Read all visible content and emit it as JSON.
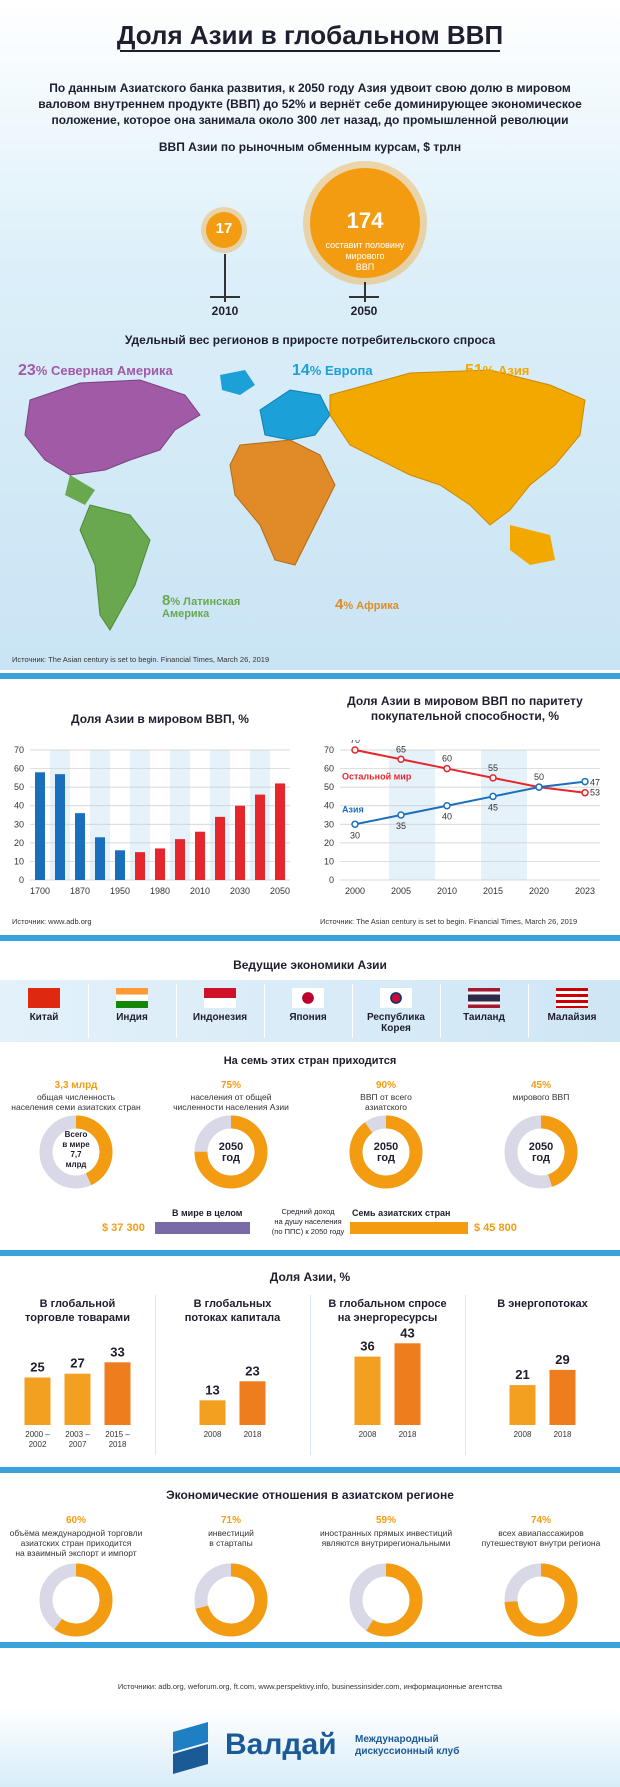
{
  "title": "Доля Азии в глобальном ВВП",
  "intro": [
    "По данным Азиатского банка развития, к 2050 году Азия удвоит свою долю в мировом",
    "валовом внутреннем продукте (ВВП) до 52% и вернёт себе доминирующее экономическое",
    "положение, которое она занимала около 300 лет назад, до промышленной революции"
  ],
  "gdp": {
    "heading": "ВВП Азии по рыночным обменным курсам, $ трлн",
    "small_value": "17",
    "small_year": "2010",
    "big_value": "174",
    "big_caption": [
      "составит половину",
      "мирового",
      "ВВП"
    ],
    "big_year": "2050"
  },
  "demand": {
    "heading": "Удельный вес регионов в приросте потребительского спроса",
    "regions": [
      {
        "pct": "23",
        "name": "% Северная Америка",
        "color": "#a05aa6"
      },
      {
        "pct": "14",
        "name": "% Европа",
        "color": "#1ba1d8"
      },
      {
        "pct": "51",
        "name": "% Азия",
        "color": "#f3a800"
      },
      {
        "pct": "8",
        "name": "% Латинская",
        "name2": "Америка",
        "color": "#6aa84f"
      },
      {
        "pct": "4",
        "name": "% Африка",
        "color": "#e08b28"
      }
    ],
    "source": "Источник: The Asian century is set to begin. Financial Times, March 26, 2019"
  },
  "chart_data": [
    {
      "type": "bar",
      "title": "Доля Азии в мировом ВВП, %",
      "categories": [
        "1700",
        "1820",
        "1870",
        "1913",
        "1950",
        "1960",
        "1980",
        "1990",
        "2010",
        "2020",
        "2030",
        "2040",
        "2050"
      ],
      "tick_labels": [
        "1700",
        "1870",
        "1950",
        "1980",
        "2010",
        "2030",
        "2050"
      ],
      "values": [
        58,
        57,
        36,
        23,
        16,
        15,
        17,
        22,
        26,
        34,
        40,
        46,
        52
      ],
      "colors": [
        "#1a6fbd",
        "#1a6fbd",
        "#1a6fbd",
        "#1a6fbd",
        "#1a6fbd",
        "#e5262d",
        "#e5262d",
        "#e5262d",
        "#e5262d",
        "#e5262d",
        "#e5262d",
        "#e5262d",
        "#e5262d"
      ],
      "yticks": [
        "0",
        "10",
        "20",
        "30",
        "40",
        "50",
        "60",
        "70"
      ],
      "ylim": [
        0,
        70
      ],
      "source": "Источник: www.adb.org"
    },
    {
      "type": "line",
      "title": [
        "Доля Азии в мировом ВВП по паритету",
        "покупательной способности, %"
      ],
      "x": [
        "2000",
        "2005",
        "2010",
        "2015",
        "2020",
        "2023"
      ],
      "yticks": [
        "0",
        "10",
        "20",
        "30",
        "40",
        "50",
        "60",
        "70"
      ],
      "ylim": [
        0,
        70
      ],
      "series": [
        {
          "name": "Остальной мир",
          "values": [
            70,
            65,
            60,
            55,
            50,
            47
          ],
          "color": "#e5262d"
        },
        {
          "name": "Азия",
          "values": [
            30,
            35,
            40,
            45,
            50,
            53
          ],
          "color": "#1a6fbd"
        }
      ],
      "labels": {
        "red": [
          "70",
          "65",
          "60",
          "55",
          "50",
          "47"
        ],
        "blue": [
          "30",
          "35",
          "40",
          "45",
          "",
          "53"
        ]
      },
      "source": "Источник: The Asian century is set to begin. Financial Times, March 26, 2019"
    },
    {
      "type": "bar",
      "title": "Доля Азии, %",
      "groups": [
        {
          "heading": [
            "В глобальной",
            "торговле товарами"
          ],
          "categories": [
            [
              "2000 –",
              "2002"
            ],
            [
              "2003 –",
              "2007"
            ],
            [
              "2015 –",
              "2018"
            ]
          ],
          "values": [
            25,
            27,
            33
          ]
        },
        {
          "heading": [
            "В глобальных",
            "потоках капитала"
          ],
          "categories": [
            [
              "2008"
            ],
            [
              "2018"
            ]
          ],
          "values": [
            13,
            23
          ]
        },
        {
          "heading": [
            "В глобальном спросе",
            "на энергоресурсы"
          ],
          "categories": [
            [
              "2008"
            ],
            [
              "2018"
            ]
          ],
          "values": [
            36,
            43
          ]
        },
        {
          "heading": [
            "В энергопотоках"
          ],
          "categories": [
            [
              "2008"
            ],
            [
              "2018"
            ]
          ],
          "values": [
            21,
            29
          ]
        }
      ]
    }
  ],
  "economies": {
    "heading": "Ведущие экономики Азии",
    "countries": [
      "Китай",
      "Индия",
      "Индонезия",
      "Япония",
      "Республика Корея",
      "Таиланд",
      "Малайзия"
    ],
    "share_heading": "На семь этих стран приходится",
    "stats": [
      {
        "value": "3,3 млрд",
        "text": [
          "общая численность",
          "населения семи азиатских стран"
        ],
        "center": [
          "Всего",
          "в мире",
          "7,7",
          "млрд"
        ],
        "fraction": 0.43
      },
      {
        "value": "75%",
        "text": [
          "населения от общей",
          "численности населения Азии"
        ],
        "center": [
          "2050",
          "год"
        ],
        "fraction": 0.75
      },
      {
        "value": "90%",
        "text": [
          "ВВП от всего",
          "азиатского"
        ],
        "center": [
          "2050",
          "год"
        ],
        "fraction": 0.9
      },
      {
        "value": "45%",
        "text": [
          "мирового ВВП"
        ],
        "center": [
          "2050",
          "год"
        ],
        "fraction": 0.45
      }
    ],
    "income": {
      "world_label": "В мире в целом",
      "world_value": "$ 37 300",
      "middle": [
        "Средний доход",
        "на душу населения",
        "(по ППС) к 2050 году"
      ],
      "asia_label": "Семь азиатских стран",
      "asia_value": "$ 45 800"
    }
  },
  "relations": {
    "heading": "Экономические отношения в азиатском регионе",
    "items": [
      {
        "value": "60%",
        "text": [
          "объёма международной торговли",
          "азиатских стран приходится",
          "на взаимный экспорт и импорт"
        ],
        "fraction": 0.6
      },
      {
        "value": "71%",
        "text": [
          "инвестиций",
          "в стартапы"
        ],
        "fraction": 0.71
      },
      {
        "value": "59%",
        "text": [
          "иностранных прямых инвестиций",
          "являются внутрирегиональными"
        ],
        "fraction": 0.59
      },
      {
        "value": "74%",
        "text": [
          "всех авиапассажиров",
          "путешествуют внутри региона"
        ],
        "fraction": 0.74
      }
    ]
  },
  "footer": {
    "sources": "Источники: adb.org, weforum.org, ft.com, www.perspektivy.info, businessinsider.com, информационные агентства",
    "brand": "Валдай",
    "club": [
      "Международный",
      "дискуссионный клуб"
    ]
  },
  "colors": {
    "orange": "#f39c12",
    "blue": "#1a6fbd",
    "red": "#e5262d",
    "light_blue": "#3aa3dc"
  }
}
